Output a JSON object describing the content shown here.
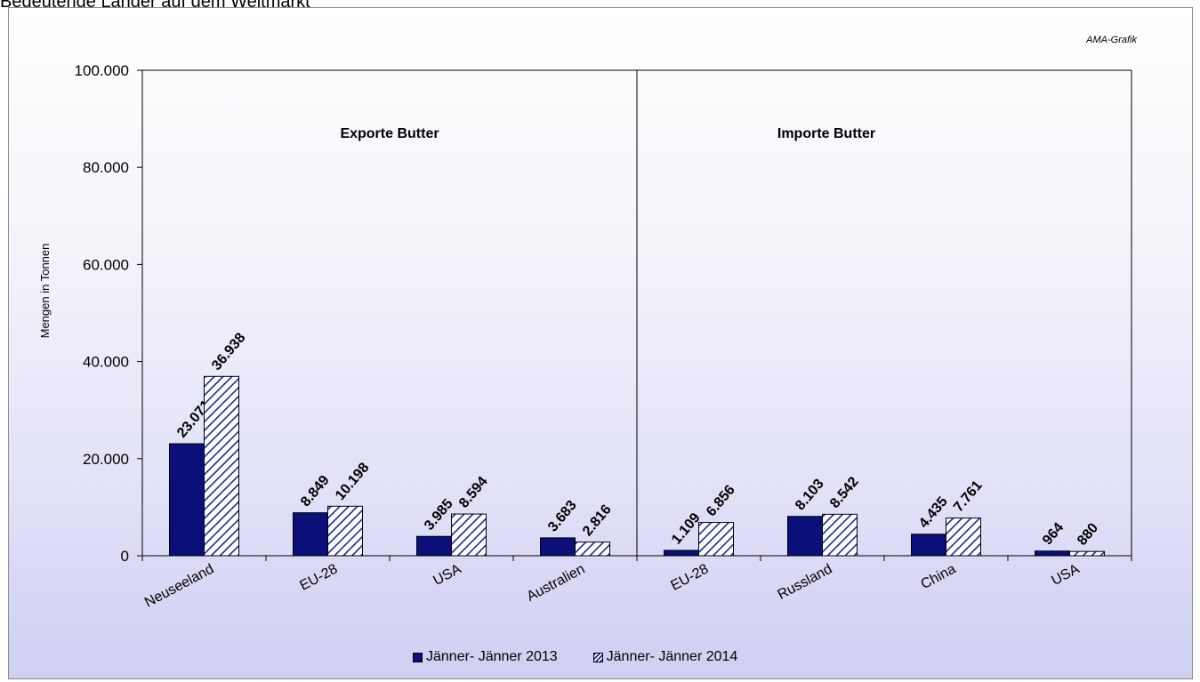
{
  "page_title": "Bedeutende Länder auf dem Weltmarkt",
  "source_note": "AMA-Grafik",
  "colors": {
    "series1": "#0a0f7a",
    "series2_hatch": "#1a2a8f",
    "axis": "#000000"
  },
  "chart_data": {
    "type": "bar",
    "ylabel": "Mengen in Tonnen",
    "ylim": [
      0,
      100000
    ],
    "yticks": [
      0,
      20000,
      40000,
      60000,
      80000,
      100000
    ],
    "ytick_labels": [
      "0",
      "20.000",
      "40.000",
      "60.000",
      "80.000",
      "100.000"
    ],
    "grid": false,
    "legend_position": "bottom",
    "panels": [
      {
        "title": "Exporte Butter",
        "categories": [
          "Neuseeland",
          "EU-28",
          "USA",
          "Australien"
        ]
      },
      {
        "title": "Importe Butter",
        "categories": [
          "EU-28",
          "Russland",
          "China",
          "USA"
        ]
      }
    ],
    "categories": [
      "Neuseeland",
      "EU-28",
      "USA",
      "Australien",
      "EU-28",
      "Russland",
      "China",
      "USA"
    ],
    "series": [
      {
        "name": "Jänner- Jänner 2013",
        "style": "solid",
        "values": [
          23071,
          8849,
          3985,
          3683,
          1109,
          8103,
          4435,
          964
        ],
        "labels": [
          "23.071",
          "8.849",
          "3.985",
          "3.683",
          "1.109",
          "8.103",
          "4.435",
          "964"
        ]
      },
      {
        "name": "Jänner- Jänner 2014",
        "style": "hatched",
        "values": [
          36938,
          10198,
          8594,
          2816,
          6856,
          8542,
          7761,
          880
        ],
        "labels": [
          "36.938",
          "10.198",
          "8.594",
          "2.816",
          "6.856",
          "8.542",
          "7.761",
          "880"
        ]
      }
    ]
  }
}
